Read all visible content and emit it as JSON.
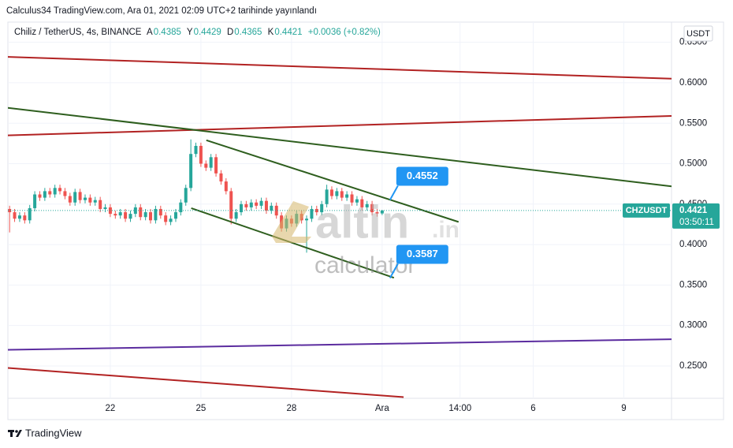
{
  "header": "Calculus34 TradingView.com, Ara 01, 2021 02:09 UTC+2 tarihinde yayınlandı",
  "footer": "TradingView",
  "watermark": {
    "brand": "altin",
    "suffix": ".in",
    "sub": "calculator"
  },
  "chart_data": {
    "type": "candlestick",
    "title": "Chiliz / TetherUS, 4s, BINANCE",
    "ohlc_letters": [
      "A",
      "Y",
      "D",
      "K"
    ],
    "change": "+0.0036 (+0.82%)",
    "symbol": "CHZUSDT",
    "countdown": "03:50:11",
    "currency": "USDT",
    "up_color": "#26a69a",
    "down_color": "#ef5350",
    "grid": true,
    "xlim": [
      18.61,
      40.58
    ],
    "ylim": [
      0.21,
      0.675
    ],
    "xticks": [
      22,
      25,
      28,
      {
        "value": 31,
        "label": "Ara"
      },
      {
        "value": 33.58,
        "label": "14:00"
      },
      {
        "value": 36,
        "label": "6"
      },
      {
        "value": 39,
        "label": "9"
      }
    ],
    "yticks": [
      {
        "value": 0.25,
        "label": "0.2500"
      },
      {
        "value": 0.3,
        "label": "0.3000"
      },
      {
        "value": 0.35,
        "label": "0.3500"
      },
      {
        "value": 0.4,
        "label": "0.4000"
      },
      {
        "value": 0.45,
        "label": "0.4500"
      },
      {
        "value": 0.5,
        "label": "0.5000"
      },
      {
        "value": 0.55,
        "label": "0.5500"
      },
      {
        "value": 0.6,
        "label": "0.6000"
      },
      {
        "value": 0.65,
        "label": "0.6500"
      }
    ],
    "candles": [
      [
        18.667,
        0.444,
        0.448,
        0.415,
        0.44
      ],
      [
        18.833,
        0.44,
        0.444,
        0.428,
        0.432
      ],
      [
        19,
        0.432,
        0.44,
        0.428,
        0.436
      ],
      [
        19.167,
        0.436,
        0.44,
        0.426,
        0.43
      ],
      [
        19.333,
        0.43,
        0.449,
        0.426,
        0.445
      ],
      [
        19.5,
        0.445,
        0.466,
        0.441,
        0.462
      ],
      [
        19.667,
        0.462,
        0.466,
        0.454,
        0.458
      ],
      [
        19.833,
        0.458,
        0.47,
        0.454,
        0.466
      ],
      [
        20,
        0.466,
        0.47,
        0.458,
        0.462
      ],
      [
        20.167,
        0.462,
        0.474,
        0.458,
        0.47
      ],
      [
        20.333,
        0.47,
        0.474,
        0.462,
        0.466
      ],
      [
        20.5,
        0.466,
        0.47,
        0.456,
        0.46
      ],
      [
        20.667,
        0.46,
        0.464,
        0.448,
        0.452
      ],
      [
        20.833,
        0.452,
        0.469,
        0.448,
        0.465
      ],
      [
        21,
        0.465,
        0.469,
        0.451,
        0.455
      ],
      [
        21.167,
        0.455,
        0.462,
        0.451,
        0.458
      ],
      [
        21.333,
        0.458,
        0.462,
        0.448,
        0.452
      ],
      [
        21.5,
        0.452,
        0.459,
        0.448,
        0.455
      ],
      [
        21.667,
        0.455,
        0.459,
        0.44,
        0.444
      ],
      [
        21.833,
        0.444,
        0.45,
        0.44,
        0.446
      ],
      [
        22,
        0.446,
        0.45,
        0.434,
        0.438
      ],
      [
        22.167,
        0.438,
        0.442,
        0.432,
        0.436
      ],
      [
        22.333,
        0.436,
        0.444,
        0.432,
        0.44
      ],
      [
        22.5,
        0.44,
        0.444,
        0.428,
        0.432
      ],
      [
        22.667,
        0.432,
        0.442,
        0.428,
        0.438
      ],
      [
        22.833,
        0.438,
        0.45,
        0.434,
        0.446
      ],
      [
        23,
        0.446,
        0.45,
        0.43,
        0.434
      ],
      [
        23.167,
        0.434,
        0.444,
        0.43,
        0.44
      ],
      [
        23.333,
        0.44,
        0.444,
        0.426,
        0.43
      ],
      [
        23.5,
        0.43,
        0.448,
        0.426,
        0.444
      ],
      [
        23.667,
        0.444,
        0.448,
        0.432,
        0.436
      ],
      [
        23.833,
        0.436,
        0.44,
        0.424,
        0.428
      ],
      [
        24,
        0.428,
        0.436,
        0.424,
        0.432
      ],
      [
        24.167,
        0.432,
        0.444,
        0.428,
        0.44
      ],
      [
        24.333,
        0.44,
        0.456,
        0.436,
        0.452
      ],
      [
        24.5,
        0.452,
        0.474,
        0.448,
        0.47
      ],
      [
        24.667,
        0.47,
        0.53,
        0.466,
        0.512
      ],
      [
        24.833,
        0.512,
        0.526,
        0.508,
        0.522
      ],
      [
        25,
        0.522,
        0.526,
        0.496,
        0.5
      ],
      [
        25.167,
        0.5,
        0.504,
        0.491,
        0.495
      ],
      [
        25.333,
        0.495,
        0.512,
        0.491,
        0.508
      ],
      [
        25.5,
        0.508,
        0.512,
        0.484,
        0.488
      ],
      [
        25.667,
        0.488,
        0.492,
        0.474,
        0.478
      ],
      [
        25.833,
        0.478,
        0.482,
        0.462,
        0.466
      ],
      [
        26,
        0.466,
        0.47,
        0.425,
        0.432
      ],
      [
        26.167,
        0.432,
        0.444,
        0.428,
        0.44
      ],
      [
        26.333,
        0.44,
        0.454,
        0.436,
        0.45
      ],
      [
        26.5,
        0.45,
        0.454,
        0.442,
        0.446
      ],
      [
        26.667,
        0.446,
        0.456,
        0.442,
        0.452
      ],
      [
        26.833,
        0.452,
        0.456,
        0.444,
        0.448
      ],
      [
        27,
        0.448,
        0.458,
        0.444,
        0.454
      ],
      [
        27.167,
        0.454,
        0.458,
        0.438,
        0.442
      ],
      [
        27.333,
        0.442,
        0.452,
        0.438,
        0.448
      ],
      [
        27.5,
        0.448,
        0.452,
        0.432,
        0.436
      ],
      [
        27.667,
        0.436,
        0.44,
        0.416,
        0.42
      ],
      [
        27.833,
        0.42,
        0.436,
        0.416,
        0.432
      ],
      [
        28,
        0.432,
        0.436,
        0.422,
        0.426
      ],
      [
        28.167,
        0.426,
        0.442,
        0.422,
        0.438
      ],
      [
        28.333,
        0.438,
        0.442,
        0.426,
        0.43
      ],
      [
        28.5,
        0.43,
        0.436,
        0.39,
        0.432
      ],
      [
        28.667,
        0.432,
        0.448,
        0.428,
        0.444
      ],
      [
        28.833,
        0.444,
        0.448,
        0.436,
        0.44
      ],
      [
        29,
        0.44,
        0.454,
        0.436,
        0.45
      ],
      [
        29.167,
        0.45,
        0.474,
        0.446,
        0.468
      ],
      [
        29.333,
        0.468,
        0.472,
        0.456,
        0.46
      ],
      [
        29.5,
        0.46,
        0.47,
        0.456,
        0.466
      ],
      [
        29.667,
        0.466,
        0.47,
        0.454,
        0.458
      ],
      [
        29.833,
        0.458,
        0.466,
        0.454,
        0.462
      ],
      [
        30,
        0.462,
        0.466,
        0.448,
        0.452
      ],
      [
        30.167,
        0.452,
        0.46,
        0.448,
        0.456
      ],
      [
        30.333,
        0.456,
        0.46,
        0.442,
        0.446
      ],
      [
        30.5,
        0.446,
        0.454,
        0.442,
        0.45
      ],
      [
        30.667,
        0.45,
        0.454,
        0.436,
        0.44
      ],
      [
        30.833,
        0.44,
        0.444,
        0.4345,
        0.4385
      ],
      [
        31,
        0.4385,
        0.4429,
        0.4365,
        0.4421
      ]
    ],
    "trendlines": [
      {
        "color": "#b22222",
        "x1": 18.61,
        "y1": 0.632,
        "x2": 40.58,
        "y2": 0.605
      },
      {
        "color": "#b22222",
        "x1": 18.61,
        "y1": 0.535,
        "x2": 40.58,
        "y2": 0.559
      },
      {
        "color": "#2e5e1e",
        "x1": 18.61,
        "y1": 0.569,
        "x2": 40.58,
        "y2": 0.472
      },
      {
        "color": "#2e5e1e",
        "x1": 25.18,
        "y1": 0.529,
        "x2": 33.53,
        "y2": 0.428
      },
      {
        "color": "#2e5e1e",
        "x1": 24.68,
        "y1": 0.445,
        "x2": 31.39,
        "y2": 0.359
      },
      {
        "color": "#5b2c9f",
        "x1": 18.61,
        "y1": 0.27,
        "x2": 40.58,
        "y2": 0.283
      },
      {
        "color": "#b22222",
        "x1": 18.61,
        "y1": 0.2475,
        "x2": 31.71,
        "y2": 0.2115
      }
    ],
    "annotations": [
      {
        "label": "0.4552",
        "x": 31.26,
        "y": 0.4552
      },
      {
        "label": "0.3587",
        "x": 31.26,
        "y": 0.3587
      }
    ]
  }
}
